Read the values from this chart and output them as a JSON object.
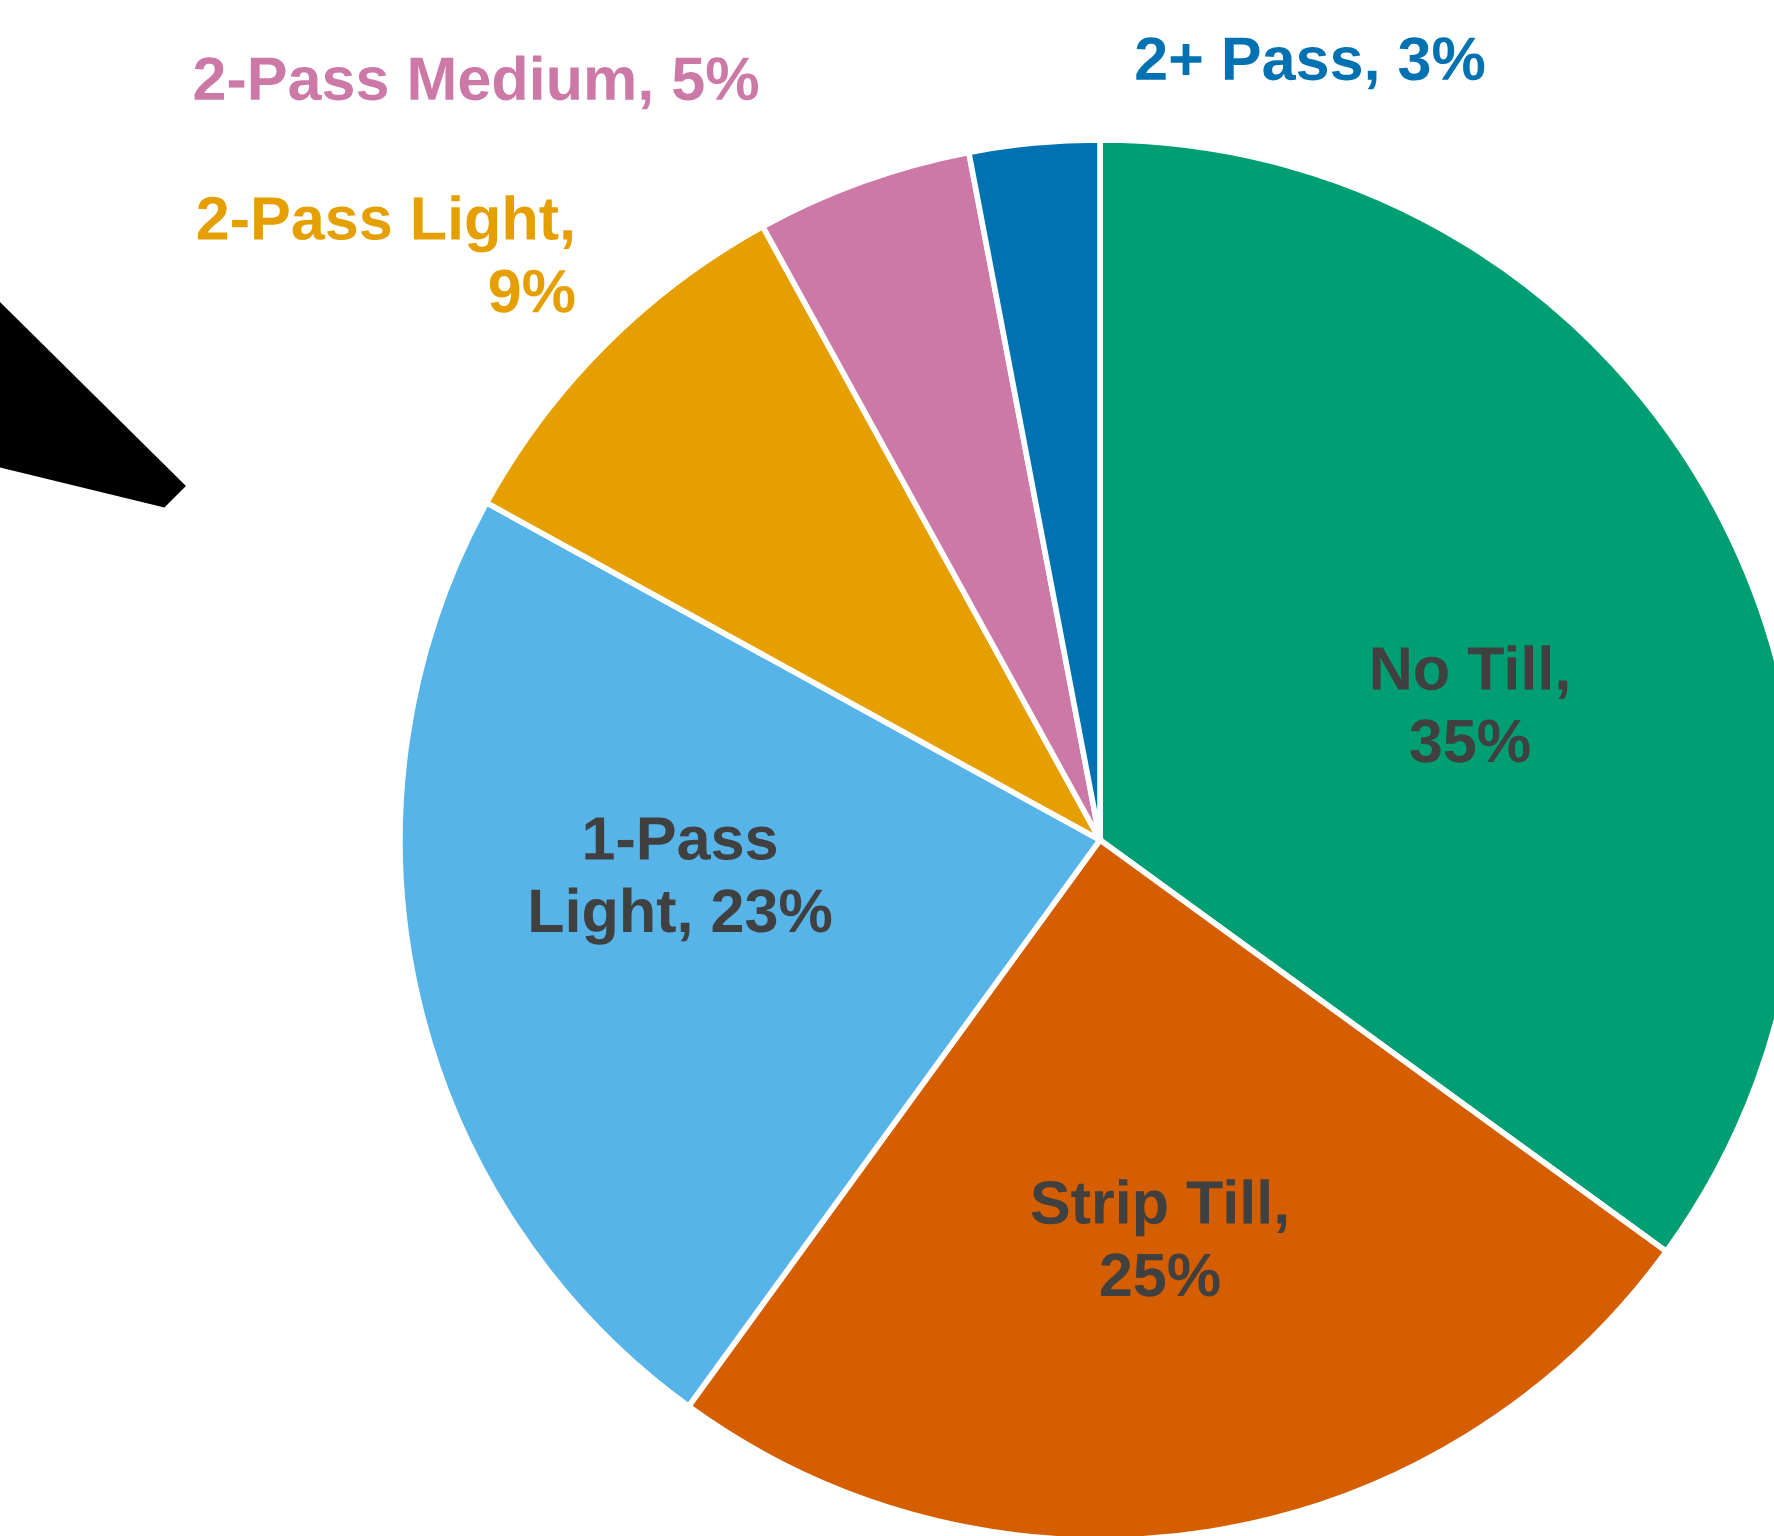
{
  "chart_data": {
    "type": "pie",
    "categories": [
      "No Till, 35%",
      "Strip Till, 25%",
      "1-Pass Light, 23%",
      "2-Pass Light, 9%",
      "2-Pass Medium, 5%",
      "2+ Pass, 3%"
    ],
    "values": [
      35,
      25,
      23,
      9,
      5,
      3
    ],
    "colors": [
      "#009e73",
      "#d55e00",
      "#56b4e9",
      "#e69f00",
      "#cc79a7",
      "#0072b2"
    ],
    "legend": false
  }
}
